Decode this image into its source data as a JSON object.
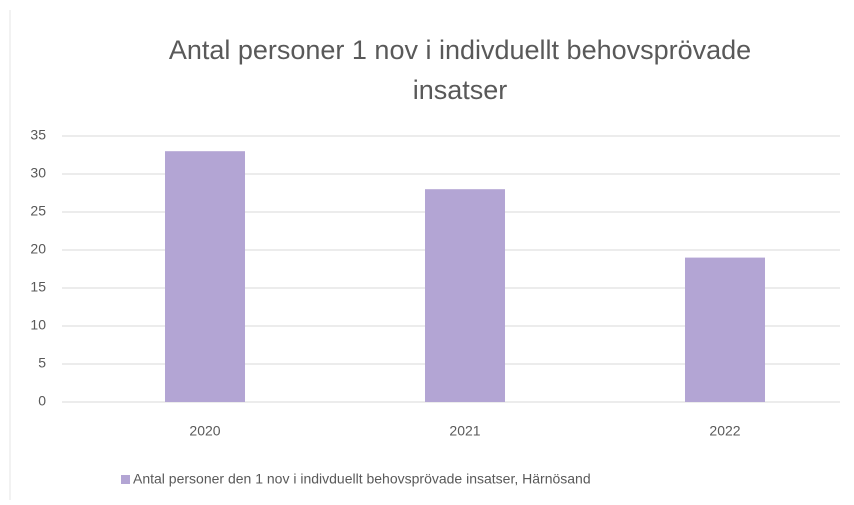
{
  "chart_data": {
    "type": "bar",
    "title": "Antal personer 1 nov i indivduellt behovsprövade insatser",
    "categories": [
      "2020",
      "2021",
      "2022"
    ],
    "series": [
      {
        "name": "Antal personer den 1 nov i indivduellt behovsprövade insatser, Härnösand",
        "color": "#b3a5d4",
        "values": [
          33,
          28,
          19
        ]
      }
    ],
    "ylim": [
      0,
      35
    ],
    "yticks": [
      0,
      5,
      10,
      15,
      20,
      25,
      30,
      35
    ],
    "grid": true,
    "legend": "bottom"
  }
}
